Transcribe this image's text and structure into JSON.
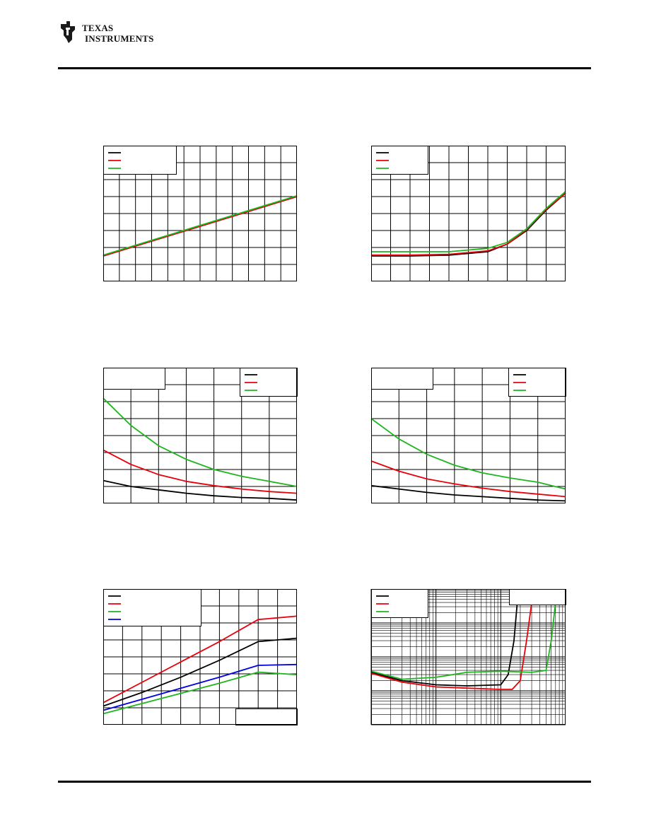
{
  "brand": {
    "line1": "TEXAS",
    "line2": "INSTRUMENTS"
  },
  "colors": {
    "black": "#000000",
    "red": "#e8000b",
    "green": "#1fb51f",
    "blue": "#0000e0",
    "grid": "#000000"
  },
  "chart_data": [
    {
      "type": "line",
      "title": "",
      "xlabel": "",
      "ylabel": "",
      "grid": true,
      "legend": "top-left",
      "xlim": [
        0,
        12
      ],
      "ylim": [
        0,
        8
      ],
      "series": [
        {
          "name": "",
          "color": "black",
          "x": [
            0,
            12
          ],
          "y": [
            1.5,
            5.0
          ]
        },
        {
          "name": "",
          "color": "red",
          "x": [
            0,
            12
          ],
          "y": [
            1.5,
            5.0
          ]
        },
        {
          "name": "",
          "color": "green",
          "x": [
            0,
            12
          ],
          "y": [
            1.55,
            5.05
          ]
        }
      ]
    },
    {
      "type": "line",
      "title": "",
      "xlabel": "",
      "ylabel": "",
      "grid": true,
      "legend": "top-left",
      "xlim": [
        0,
        10
      ],
      "ylim": [
        0,
        8
      ],
      "series": [
        {
          "name": "",
          "color": "black",
          "x": [
            0,
            2,
            4,
            6,
            7,
            8,
            9,
            10
          ],
          "y": [
            1.5,
            1.5,
            1.55,
            1.75,
            2.2,
            3.0,
            4.2,
            5.2
          ]
        },
        {
          "name": "",
          "color": "red",
          "x": [
            0,
            2,
            4,
            6,
            7,
            8,
            9,
            10
          ],
          "y": [
            1.55,
            1.55,
            1.6,
            1.8,
            2.2,
            3.05,
            4.25,
            5.2
          ]
        },
        {
          "name": "",
          "color": "green",
          "x": [
            0,
            2,
            4,
            6,
            7,
            8,
            9,
            10
          ],
          "y": [
            1.75,
            1.75,
            1.75,
            1.95,
            2.3,
            3.1,
            4.3,
            5.3
          ]
        }
      ]
    },
    {
      "type": "line",
      "title": "",
      "xlabel": "",
      "ylabel": "",
      "grid": true,
      "legend": "top-right",
      "xlim": [
        0,
        7
      ],
      "ylim": [
        0,
        8
      ],
      "series": [
        {
          "name": "",
          "color": "black",
          "x": [
            0,
            1,
            2,
            3,
            4,
            5,
            6,
            7
          ],
          "y": [
            1.35,
            1.0,
            0.8,
            0.6,
            0.45,
            0.35,
            0.3,
            0.2
          ]
        },
        {
          "name": "",
          "color": "red",
          "x": [
            0,
            1,
            2,
            3,
            4,
            5,
            6,
            7
          ],
          "y": [
            3.15,
            2.3,
            1.7,
            1.3,
            1.05,
            0.85,
            0.7,
            0.6
          ]
        },
        {
          "name": "",
          "color": "green",
          "x": [
            0,
            1,
            2,
            3,
            4,
            5,
            6,
            7
          ],
          "y": [
            6.2,
            4.6,
            3.4,
            2.6,
            2.0,
            1.6,
            1.3,
            1.0
          ]
        }
      ]
    },
    {
      "type": "line",
      "title": "",
      "xlabel": "",
      "ylabel": "",
      "grid": true,
      "legend": "top-right",
      "xlim": [
        0,
        7
      ],
      "ylim": [
        0,
        8
      ],
      "series": [
        {
          "name": "",
          "color": "black",
          "x": [
            0,
            1,
            2,
            3,
            4,
            5,
            6,
            7
          ],
          "y": [
            1.05,
            0.85,
            0.65,
            0.5,
            0.4,
            0.3,
            0.2,
            0.15
          ]
        },
        {
          "name": "",
          "color": "red",
          "x": [
            0,
            1,
            2,
            3,
            4,
            5,
            6,
            7
          ],
          "y": [
            2.5,
            1.9,
            1.45,
            1.15,
            0.9,
            0.7,
            0.55,
            0.4
          ]
        },
        {
          "name": "",
          "color": "green",
          "x": [
            0,
            1,
            2,
            3,
            4,
            5,
            6,
            7
          ],
          "y": [
            5.0,
            3.8,
            2.9,
            2.25,
            1.8,
            1.5,
            1.25,
            0.85
          ]
        }
      ]
    },
    {
      "type": "line",
      "title": "",
      "xlabel": "",
      "ylabel": "",
      "grid": true,
      "legend": "top-left",
      "xlim": [
        0,
        10
      ],
      "ylim": [
        0,
        8
      ],
      "series": [
        {
          "name": "",
          "color": "black",
          "x": [
            0,
            2,
            4,
            6,
            8,
            10
          ],
          "y": [
            1.1,
            1.9,
            2.8,
            3.8,
            4.9,
            5.1
          ]
        },
        {
          "name": "",
          "color": "red",
          "x": [
            0,
            2,
            4,
            6,
            8,
            10
          ],
          "y": [
            1.3,
            2.5,
            3.7,
            4.9,
            6.2,
            6.4
          ]
        },
        {
          "name": "",
          "color": "green",
          "x": [
            0,
            2,
            4,
            6,
            8,
            10
          ],
          "y": [
            0.65,
            1.25,
            1.85,
            2.45,
            3.1,
            2.95
          ]
        },
        {
          "name": "",
          "color": "blue",
          "x": [
            0,
            2,
            4,
            6,
            8,
            10
          ],
          "y": [
            0.85,
            1.5,
            2.15,
            2.8,
            3.5,
            3.55
          ]
        }
      ]
    },
    {
      "type": "line",
      "title": "",
      "xlabel": "",
      "ylabel": "",
      "grid": true,
      "legend": "top-left",
      "xscale": "log",
      "yscale": "log",
      "xlim": [
        0.01,
        10
      ],
      "ylim": [
        0.01,
        100
      ],
      "series": [
        {
          "name": "",
          "color": "black",
          "x": [
            0.01,
            0.03,
            0.1,
            0.3,
            1,
            1.3,
            1.6,
            1.8
          ],
          "y": [
            0.35,
            0.2,
            0.15,
            0.14,
            0.15,
            0.3,
            3,
            40
          ]
        },
        {
          "name": "",
          "color": "red",
          "x": [
            0.01,
            0.03,
            0.1,
            0.3,
            1,
            1.5,
            2,
            2.5,
            3
          ],
          "y": [
            0.33,
            0.18,
            0.13,
            0.12,
            0.11,
            0.11,
            0.2,
            3,
            40
          ]
        },
        {
          "name": "",
          "color": "green",
          "x": [
            0.01,
            0.03,
            0.1,
            0.3,
            1,
            3,
            5,
            6,
            7
          ],
          "y": [
            0.38,
            0.22,
            0.25,
            0.35,
            0.38,
            0.35,
            0.4,
            3,
            40
          ]
        }
      ]
    }
  ]
}
